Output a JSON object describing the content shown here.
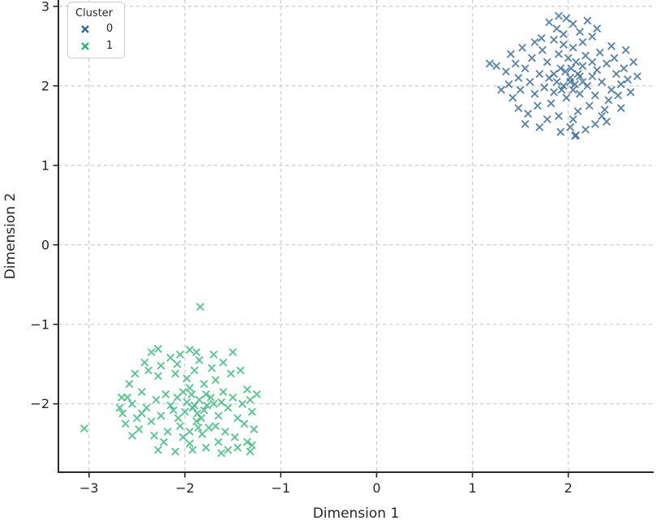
{
  "chart_data": {
    "type": "scatter",
    "xlabel": "Dimension 1",
    "ylabel": "Dimension 2",
    "xlim": [
      -3.32,
      2.89
    ],
    "ylim": [
      -2.86,
      3.08
    ],
    "xticks": [
      -3,
      -2,
      -1,
      0,
      1,
      2
    ],
    "yticks": [
      -2,
      -1,
      0,
      1,
      2,
      3
    ],
    "grid": true,
    "grid_style": "dashed",
    "grid_color": "#c9c9c9",
    "spine_color": "#2a2a2a",
    "marker": "x",
    "marker_opacity": 0.78,
    "legend": {
      "title": "Cluster",
      "position": "upper left",
      "entries": [
        {
          "label": "0",
          "color": "#31648f"
        },
        {
          "label": "1",
          "color": "#2bb673"
        }
      ]
    },
    "series": [
      {
        "name": "0",
        "color": "#31648f",
        "points": [
          [
            2.02,
            2.1
          ],
          [
            1.95,
            2.0
          ],
          [
            2.1,
            2.15
          ],
          [
            1.88,
            2.05
          ],
          [
            2.05,
            1.95
          ],
          [
            2.15,
            2.25
          ],
          [
            1.8,
            2.1
          ],
          [
            2.2,
            2.0
          ],
          [
            1.92,
            2.22
          ],
          [
            2.08,
            2.3
          ],
          [
            1.98,
            1.85
          ],
          [
            2.12,
            1.9
          ],
          [
            1.85,
            1.92
          ],
          [
            2.25,
            2.12
          ],
          [
            1.75,
            1.98
          ],
          [
            2.3,
            2.2
          ],
          [
            2.0,
            2.35
          ],
          [
            1.9,
            2.4
          ],
          [
            2.18,
            2.38
          ],
          [
            2.35,
            2.05
          ],
          [
            1.7,
            2.15
          ],
          [
            2.28,
            1.88
          ],
          [
            1.82,
            1.78
          ],
          [
            2.05,
            2.48
          ],
          [
            1.95,
            2.52
          ],
          [
            2.4,
            2.28
          ],
          [
            1.65,
            1.9
          ],
          [
            2.22,
            1.75
          ],
          [
            1.78,
            2.3
          ],
          [
            2.45,
            1.95
          ],
          [
            1.6,
            2.05
          ],
          [
            2.1,
            1.68
          ],
          [
            1.9,
            1.62
          ],
          [
            2.33,
            2.42
          ],
          [
            1.73,
            2.45
          ],
          [
            2.5,
            2.15
          ],
          [
            1.55,
            2.22
          ],
          [
            2.05,
            1.58
          ],
          [
            1.85,
            2.58
          ],
          [
            2.38,
            1.7
          ],
          [
            1.68,
            1.75
          ],
          [
            2.48,
            2.35
          ],
          [
            1.5,
            1.95
          ],
          [
            2.55,
            2.02
          ],
          [
            1.95,
            2.65
          ],
          [
            2.15,
            2.55
          ],
          [
            1.62,
            2.35
          ],
          [
            2.42,
            1.82
          ],
          [
            1.48,
            2.1
          ],
          [
            2.25,
            2.62
          ],
          [
            2.02,
            1.48
          ],
          [
            1.78,
            1.58
          ],
          [
            2.58,
            2.22
          ],
          [
            1.45,
            2.28
          ],
          [
            2.35,
            1.62
          ],
          [
            1.88,
            2.72
          ],
          [
            2.12,
            2.68
          ],
          [
            1.58,
            1.65
          ],
          [
            2.52,
            1.88
          ],
          [
            1.42,
            1.85
          ],
          [
            2.28,
            1.52
          ],
          [
            1.72,
            2.6
          ],
          [
            2.62,
            2.08
          ],
          [
            1.38,
            2.02
          ],
          [
            2.05,
            2.78
          ],
          [
            1.92,
            1.42
          ],
          [
            2.45,
            2.5
          ],
          [
            1.52,
            2.48
          ],
          [
            2.65,
            1.92
          ],
          [
            1.35,
            2.18
          ],
          [
            2.18,
            1.45
          ],
          [
            1.65,
            2.55
          ],
          [
            2.55,
            1.72
          ],
          [
            1.4,
            2.4
          ],
          [
            1.98,
            2.85
          ],
          [
            2.3,
            2.72
          ],
          [
            1.48,
            1.72
          ],
          [
            2.68,
            2.3
          ],
          [
            2.08,
            1.38
          ],
          [
            1.3,
            1.95
          ],
          [
            2.6,
            2.45
          ],
          [
            1.55,
            1.52
          ],
          [
            2.72,
            2.12
          ],
          [
            1.25,
            2.25
          ],
          [
            2.4,
            1.55
          ],
          [
            1.8,
            2.8
          ],
          [
            2.2,
            2.82
          ],
          [
            1.7,
            1.48
          ],
          [
            2.15,
            2.05
          ],
          [
            1.97,
            2.18
          ],
          [
            2.07,
            2.02
          ],
          [
            1.93,
            1.95
          ],
          [
            2.03,
            2.22
          ],
          [
            2.25,
            2.3
          ],
          [
            1.85,
            2.15
          ],
          [
            2.12,
            2.12
          ],
          [
            1.18,
            2.28
          ],
          [
            1.9,
            2.88
          ],
          [
            2.07,
            1.37
          ],
          [
            2.02,
            2.05
          ]
        ]
      },
      {
        "name": "1",
        "color": "#2bb673",
        "points": [
          [
            -1.85,
            -1.95
          ],
          [
            -1.92,
            -2.05
          ],
          [
            -1.78,
            -1.88
          ],
          [
            -2.0,
            -2.1
          ],
          [
            -1.7,
            -2.0
          ],
          [
            -1.95,
            -1.8
          ],
          [
            -2.08,
            -1.92
          ],
          [
            -1.65,
            -2.15
          ],
          [
            -1.88,
            -2.22
          ],
          [
            -2.15,
            -2.02
          ],
          [
            -1.6,
            -1.85
          ],
          [
            -2.05,
            -2.28
          ],
          [
            -1.75,
            -2.3
          ],
          [
            -2.2,
            -1.88
          ],
          [
            -1.55,
            -2.05
          ],
          [
            -1.98,
            -1.68
          ],
          [
            -2.25,
            -2.15
          ],
          [
            -1.68,
            -1.7
          ],
          [
            -1.82,
            -2.38
          ],
          [
            -2.3,
            -1.95
          ],
          [
            -1.5,
            -1.92
          ],
          [
            -2.1,
            -1.62
          ],
          [
            -1.9,
            -1.58
          ],
          [
            -2.35,
            -2.22
          ],
          [
            -1.45,
            -2.18
          ],
          [
            -2.02,
            -2.42
          ],
          [
            -1.72,
            -1.55
          ],
          [
            -2.4,
            -2.05
          ],
          [
            -1.58,
            -2.35
          ],
          [
            -2.18,
            -2.35
          ],
          [
            -1.4,
            -2.0
          ],
          [
            -1.95,
            -2.5
          ],
          [
            -2.45,
            -1.85
          ],
          [
            -1.65,
            -2.48
          ],
          [
            -2.28,
            -1.65
          ],
          [
            -1.52,
            -1.62
          ],
          [
            -2.5,
            -2.18
          ],
          [
            -1.85,
            -1.45
          ],
          [
            -2.08,
            -1.5
          ],
          [
            -1.38,
            -2.25
          ],
          [
            -2.55,
            -2.0
          ],
          [
            -1.48,
            -2.42
          ],
          [
            -2.22,
            -2.48
          ],
          [
            -1.92,
            -2.58
          ],
          [
            -2.6,
            -1.92
          ],
          [
            -1.35,
            -1.82
          ],
          [
            -2.38,
            -1.58
          ],
          [
            -1.6,
            -1.48
          ],
          [
            -2.48,
            -2.32
          ],
          [
            -1.3,
            -2.1
          ],
          [
            -2.15,
            -1.42
          ],
          [
            -1.78,
            -2.55
          ],
          [
            -2.65,
            -2.12
          ],
          [
            -1.42,
            -1.58
          ],
          [
            -2.32,
            -2.4
          ],
          [
            -1.55,
            -2.58
          ],
          [
            -2.58,
            -1.75
          ],
          [
            -1.32,
            -1.95
          ],
          [
            -2.05,
            -1.38
          ],
          [
            -1.88,
            -1.35
          ],
          [
            -2.42,
            -1.48
          ],
          [
            -1.28,
            -2.32
          ],
          [
            -2.68,
            -2.05
          ],
          [
            -1.7,
            -1.38
          ],
          [
            -2.25,
            -1.52
          ],
          [
            -1.45,
            -2.55
          ],
          [
            -2.52,
            -1.62
          ],
          [
            -1.25,
            -1.88
          ],
          [
            -2.1,
            -2.6
          ],
          [
            -1.35,
            -2.48
          ],
          [
            -2.35,
            -1.35
          ],
          [
            -1.62,
            -2.62
          ],
          [
            -2.62,
            -2.25
          ],
          [
            -1.95,
            -1.32
          ],
          [
            -2.28,
            -2.58
          ],
          [
            -1.3,
            -2.52
          ],
          [
            -2.55,
            -2.4
          ],
          [
            -1.5,
            -1.35
          ],
          [
            -2.45,
            -2.12
          ],
          [
            -1.8,
            -2.08
          ],
          [
            -1.98,
            -1.98
          ],
          [
            -1.87,
            -2.12
          ],
          [
            -2.02,
            -1.85
          ],
          [
            -1.73,
            -1.92
          ],
          [
            -1.9,
            -2.02
          ],
          [
            -1.83,
            -2.18
          ],
          [
            -2.12,
            -2.08
          ],
          [
            -1.77,
            -2.02
          ],
          [
            -1.93,
            -1.88
          ],
          [
            -1.86,
            -2.3
          ],
          [
            -3.05,
            -2.31
          ],
          [
            -1.84,
            -0.78
          ],
          [
            -2.28,
            -1.31
          ],
          [
            -1.32,
            -2.6
          ],
          [
            -2.66,
            -1.92
          ],
          [
            -1.68,
            -2.28
          ],
          [
            -2.07,
            -2.18
          ],
          [
            -1.62,
            -1.98
          ],
          [
            -1.95,
            -2.35
          ],
          [
            -1.8,
            -1.75
          ]
        ]
      }
    ]
  }
}
